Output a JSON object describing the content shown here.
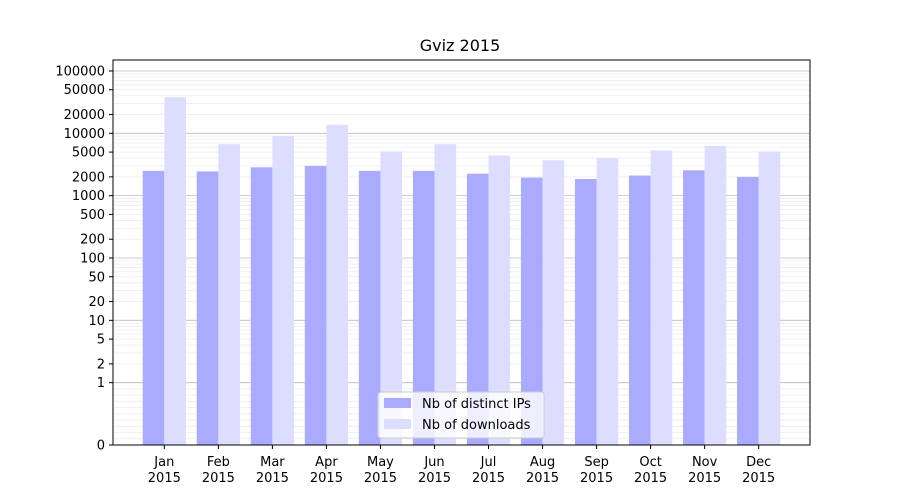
{
  "chart_data": {
    "type": "bar",
    "title": "Gviz 2015",
    "xlabel": "",
    "ylabel": "",
    "categories": [
      "Jan\n2015",
      "Feb\n2015",
      "Mar\n2015",
      "Apr\n2015",
      "May\n2015",
      "Jun\n2015",
      "Jul\n2015",
      "Aug\n2015",
      "Sep\n2015",
      "Oct\n2015",
      "Nov\n2015",
      "Dec\n2015"
    ],
    "y_scale": "symlog",
    "y_ticks": [
      0,
      1,
      2,
      5,
      10,
      20,
      50,
      100,
      200,
      500,
      1000,
      2000,
      5000,
      10000,
      20000,
      50000,
      100000
    ],
    "y_tick_labels": [
      "0",
      "1",
      "2",
      "5",
      "10",
      "20",
      "50",
      "100",
      "200",
      "500",
      "1000",
      "2000",
      "5000",
      "10000",
      "20000",
      "50000",
      "100000"
    ],
    "ylim": [
      0,
      150000
    ],
    "grid": true,
    "legend_position": "lower-center",
    "series": [
      {
        "name": "Nb of distinct IPs",
        "color": "#aaaaff",
        "values": [
          2500,
          2450,
          2850,
          3000,
          2500,
          2500,
          2250,
          1950,
          1850,
          2100,
          2550,
          2000
        ]
      },
      {
        "name": "Nb of downloads",
        "color": "#ddddff",
        "values": [
          38000,
          6700,
          9000,
          13700,
          5100,
          6700,
          4400,
          3700,
          4000,
          5300,
          6300,
          5100
        ]
      }
    ]
  }
}
